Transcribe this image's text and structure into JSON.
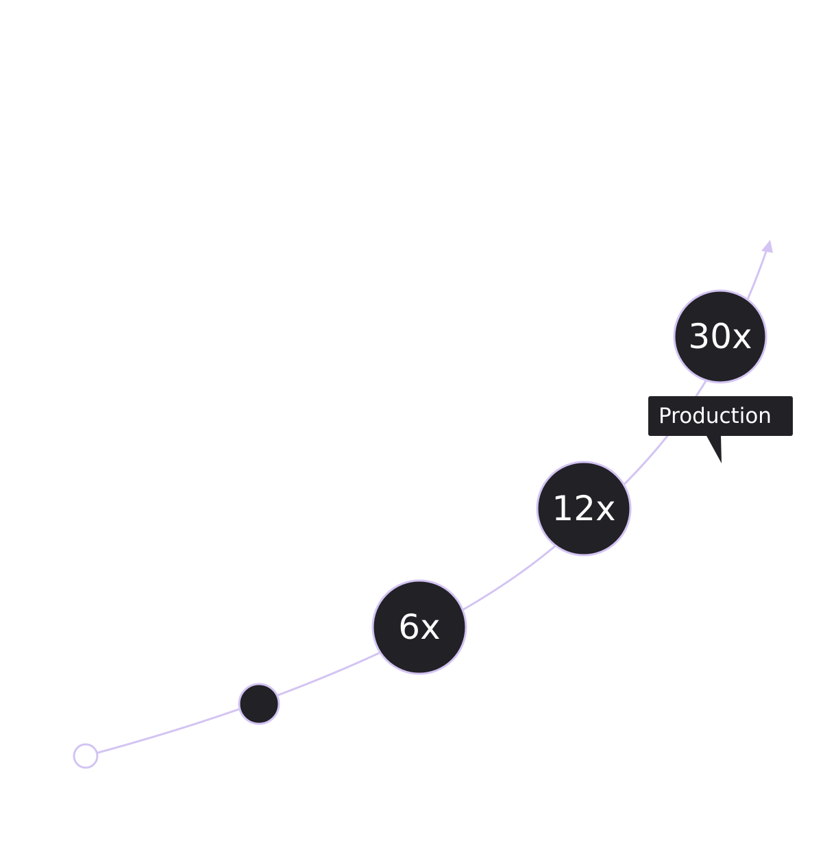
{
  "colors": {
    "curve": "#d3c4f3",
    "node_fill": "#222126",
    "node_stroke": "#d3c4f3",
    "label": "#ffffff",
    "background": "#ffffff"
  },
  "growth_curve": {
    "milestones": [
      {
        "label": ""
      },
      {
        "label": ""
      },
      {
        "label": "6x"
      },
      {
        "label": "12x"
      },
      {
        "label": "30x"
      }
    ],
    "tooltip": {
      "label": "Production"
    },
    "end_marker": "arrow-up-icon"
  }
}
